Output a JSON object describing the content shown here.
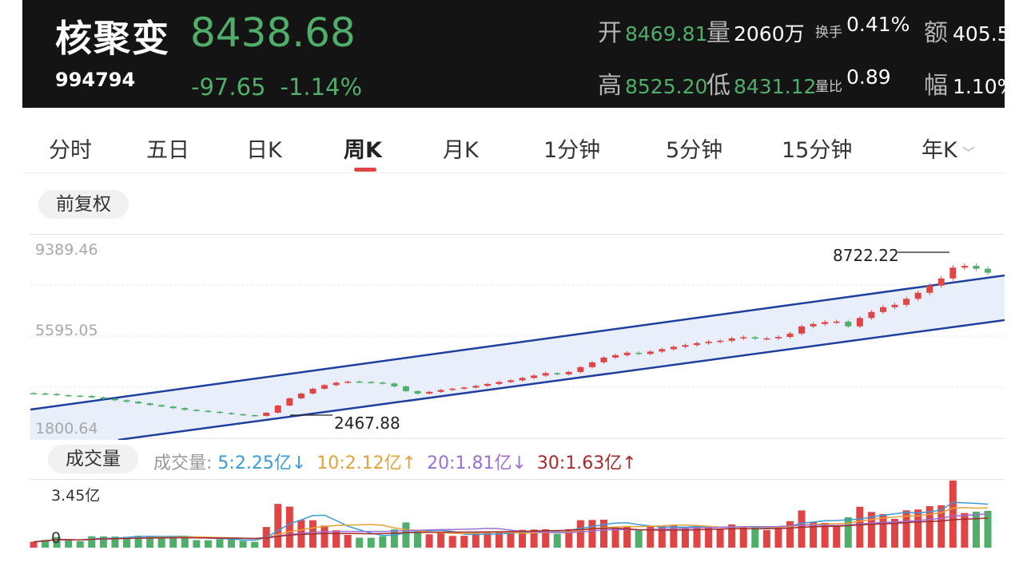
{
  "header": {
    "name": "核聚变",
    "code": "994794",
    "price": "8438.68",
    "change": "-97.65",
    "change_pct": "-1.14%",
    "open_label": "开",
    "open_value": "8469.81",
    "volume_label": "量",
    "volume_value": "2060万",
    "turnover_label": "换手",
    "turnover_value": "0.41%",
    "amount_label": "额",
    "amount_value": "405.5",
    "high_label": "高",
    "high_value": "8525.20",
    "low_label": "低",
    "low_value": "8431.12",
    "vol_ratio_label": "量比",
    "vol_ratio_value": "0.89",
    "amp_label": "幅",
    "amp_value": "1.10%"
  },
  "tabs": [
    "分时",
    "五日",
    "日K",
    "周K",
    "月K",
    "1分钟",
    "5分钟",
    "15分钟",
    "年K"
  ],
  "active_tab": "周K",
  "adjust_chip": "前复权",
  "main_chart": {
    "y_labels": [
      "9389.46",
      "5595.05",
      "1800.64"
    ],
    "high_annotation": "8722.22",
    "low_annotation": "2467.88"
  },
  "volume": {
    "chip": "成交量",
    "legend_prefix": "成交量:",
    "ma5": "5:2.25亿↓",
    "ma10": "10:2.12亿↑",
    "ma20": "20:1.81亿↓",
    "ma30": "30:1.63亿↑",
    "y_max": "3.45亿",
    "y_min": "0"
  },
  "colors": {
    "up": "#e04545",
    "down": "#4fae6a",
    "channel": "#1f3f9e",
    "channel_fill": "#e8effa",
    "ma5": "#3a9bd9",
    "ma10": "#e6a13a",
    "ma20": "#9b6fd6",
    "ma30": "#a52a2a"
  },
  "chart_data": {
    "type": "candlestick",
    "ylim": [
      1800.64,
      9389.46
    ],
    "close": [
      3400,
      3380,
      3330,
      3310,
      3300,
      3240,
      3180,
      3120,
      3060,
      2990,
      2920,
      2860,
      2790,
      2720,
      2680,
      2640,
      2590,
      2540,
      2500,
      2467.88,
      2600,
      2900,
      3200,
      3400,
      3600,
      3750,
      3850,
      3900,
      3880,
      3860,
      3820,
      3700,
      3500,
      3400,
      3470,
      3550,
      3600,
      3650,
      3720,
      3800,
      3880,
      3950,
      4050,
      4150,
      4250,
      4200,
      4300,
      4500,
      4700,
      4900,
      5000,
      5100,
      5050,
      5150,
      5250,
      5350,
      5420,
      5500,
      5560,
      5600,
      5700,
      5750,
      5690,
      5700,
      5760,
      5900,
      6200,
      6300,
      6380,
      6400,
      6200,
      6550,
      6800,
      7000,
      7100,
      7350,
      7600,
      7900,
      8200,
      8650,
      8722.22,
      8600,
      8438.68
    ],
    "volume_ylim": [
      0,
      3.45
    ],
    "ma_unit": "亿"
  }
}
